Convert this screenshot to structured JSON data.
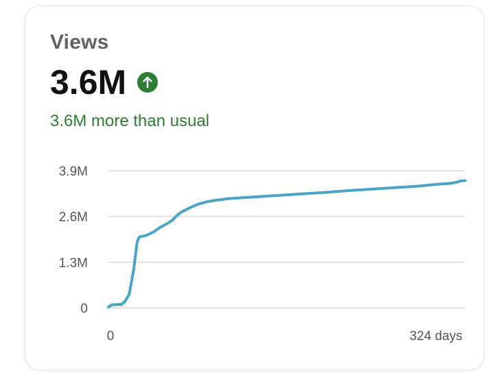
{
  "card": {
    "metric_label": "Views",
    "metric_value": "3.6M",
    "trend_icon": "arrow-up-circle-icon",
    "comparison_text": "3.6M more than usual"
  },
  "colors": {
    "line": "#4aa3c8",
    "grid": "#e2e2e2",
    "positive": "#2e7d32"
  },
  "chart_data": {
    "type": "line",
    "title": "",
    "xlabel": "",
    "ylabel": "",
    "x_unit": "days",
    "xlim": [
      0,
      324
    ],
    "ylim": [
      0,
      3900000
    ],
    "y_ticks": [
      {
        "value": 0,
        "label": "0"
      },
      {
        "value": 1300000,
        "label": "1.3M"
      },
      {
        "value": 2600000,
        "label": "2.6M"
      },
      {
        "value": 3900000,
        "label": "3.9M"
      }
    ],
    "x_ticks": [
      {
        "value": 0,
        "label": "0"
      },
      {
        "value": 324,
        "label": "324 days"
      }
    ],
    "grid": true,
    "series": [
      {
        "x": [
          0,
          3,
          6,
          12,
          15,
          17,
          19,
          21,
          23,
          25,
          26,
          27,
          28,
          29,
          30,
          32,
          34,
          38,
          42,
          47,
          53,
          58,
          62,
          66,
          71,
          75,
          80,
          85,
          90,
          95,
          100,
          110,
          120,
          140,
          160,
          180,
          200,
          220,
          240,
          260,
          280,
          300,
          310,
          316,
          320,
          324
        ],
        "y": [
          20000,
          90000,
          90000,
          100000,
          180000,
          290000,
          400000,
          750000,
          1100000,
          1600000,
          1850000,
          1950000,
          2010000,
          2030000,
          2030000,
          2040000,
          2060000,
          2110000,
          2180000,
          2290000,
          2390000,
          2490000,
          2620000,
          2720000,
          2800000,
          2860000,
          2930000,
          2980000,
          3020000,
          3050000,
          3070000,
          3110000,
          3130000,
          3170000,
          3210000,
          3250000,
          3290000,
          3340000,
          3380000,
          3420000,
          3460000,
          3520000,
          3540000,
          3570000,
          3610000,
          3620000
        ]
      }
    ]
  }
}
